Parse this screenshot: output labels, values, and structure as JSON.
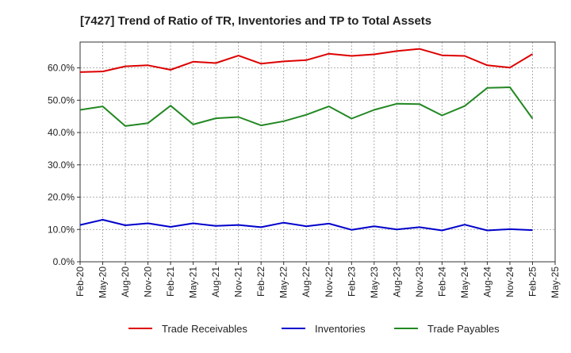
{
  "chart_data": {
    "type": "line",
    "title": "[7427]  Trend of Ratio of TR, Inventories and TP to Total Assets",
    "xlabel": "",
    "ylabel": "",
    "x_tick_labels": [
      "Feb-20",
      "May-20",
      "Aug-20",
      "Nov-20",
      "Feb-21",
      "May-21",
      "Aug-21",
      "Nov-21",
      "Feb-22",
      "May-22",
      "Aug-22",
      "Nov-22",
      "Feb-23",
      "May-23",
      "Aug-23",
      "Nov-23",
      "Feb-24",
      "May-24",
      "Aug-24",
      "Nov-24",
      "Feb-25",
      "May-25"
    ],
    "y_tick_labels": [
      "0.0%",
      "10.0%",
      "20.0%",
      "30.0%",
      "40.0%",
      "50.0%",
      "60.0%"
    ],
    "y_ticks": [
      0,
      10,
      20,
      30,
      40,
      50,
      60
    ],
    "ylim": [
      0,
      68
    ],
    "grid": true,
    "legend_position": "bottom",
    "categories": [
      "Feb-20",
      "May-20",
      "Aug-20",
      "Nov-20",
      "Feb-21",
      "May-21",
      "Aug-21",
      "Nov-21",
      "Feb-22",
      "May-22",
      "Aug-22",
      "Nov-22",
      "Feb-23",
      "May-23",
      "Aug-23",
      "Nov-23",
      "Feb-24",
      "May-24",
      "Aug-24",
      "Nov-24",
      "Feb-25"
    ],
    "series": [
      {
        "name": "Trade Receivables",
        "color": "#dd0000",
        "values": [
          58.7,
          58.9,
          60.5,
          60.8,
          59.4,
          61.9,
          61.5,
          63.8,
          61.3,
          62.0,
          62.4,
          64.4,
          63.7,
          64.2,
          65.2,
          65.9,
          63.9,
          63.7,
          60.8,
          60.1,
          64.3
        ]
      },
      {
        "name": "Inventories",
        "color": "#0000cc",
        "values": [
          11.4,
          13.0,
          11.3,
          11.9,
          10.8,
          11.9,
          11.1,
          11.4,
          10.7,
          12.1,
          11.0,
          11.8,
          9.9,
          11.0,
          10.0,
          10.7,
          9.7,
          11.5,
          9.7,
          10.1,
          9.8
        ]
      },
      {
        "name": "Trade Payables",
        "color": "#228822",
        "values": [
          47.0,
          48.1,
          42.0,
          42.9,
          48.3,
          42.5,
          44.4,
          44.8,
          42.2,
          43.5,
          45.5,
          48.1,
          44.3,
          47.0,
          48.9,
          48.8,
          45.3,
          48.2,
          53.8,
          54.0,
          44.3
        ]
      }
    ]
  }
}
